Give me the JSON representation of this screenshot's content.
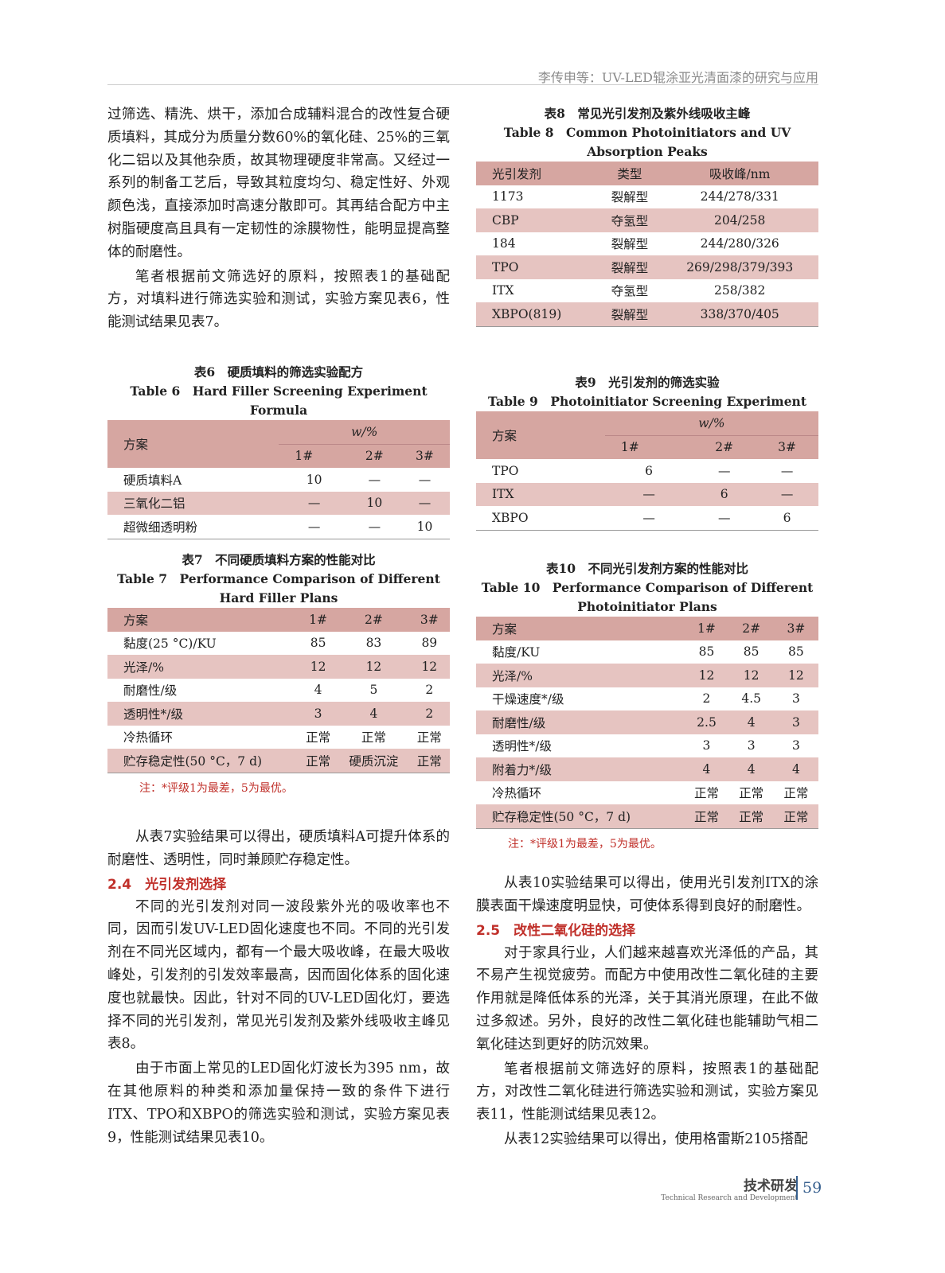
{
  "header": {
    "running_title": "李传申等：UV-LED辊涂亚光清面漆的研究与应用"
  },
  "left": {
    "p1": "过筛选、精洗、烘干，添加合成辅料混合的改性复合硬质填料，其成分为质量分数60%的氧化硅、25%的三氧化二铝以及其他杂质，故其物理硬度非常高。又经过一系列的制备工艺后，导致其粒度均匀、稳定性好、外观颜色浅，直接添加时高速分散即可。其再结合配方中主树脂硬度高且具有一定韧性的涂膜物性，能明显提高整体的耐磨性。",
    "p2": "笔者根据前文筛选好的原料，按照表1的基础配方，对填料进行筛选实验和测试，实验方案见表6，性能测试结果见表7。",
    "p3": "从表7实验结果可以得出，硬质填料A可提升体系的耐磨性、透明性，同时兼顾贮存稳定性。",
    "h24": "2.4　光引发剂选择",
    "p4": "不同的光引发剂对同一波段紫外光的吸收率也不同，因而引发UV-LED固化速度也不同。不同的光引发剂在不同光区域内，都有一个最大吸收峰，在最大吸收峰处，引发剂的引发效率最高，因而固化体系的固化速度也就最快。因此，针对不同的UV-LED固化灯，要选择不同的光引发剂，常见光引发剂及紫外线吸收主峰见表8。",
    "p5": "由于市面上常见的LED固化灯波长为395 nm，故在其他原料的种类和添加量保持一致的条件下进行ITX、TPO和XBPO的筛选实验和测试，实验方案见表9，性能测试结果见表10。"
  },
  "right": {
    "p1": "从表10实验结果可以得出，使用光引发剂ITX的涂膜表面干燥速度明显快，可使体系得到良好的耐磨性。",
    "h25": "2.5　改性二氧化硅的选择",
    "p2": "对于家具行业，人们越来越喜欢光泽低的产品，其不易产生视觉疲劳。而配方中使用改性二氧化硅的主要作用就是降低体系的光泽，关于其消光原理，在此不做过多叙述。另外，良好的改性二氧化硅也能辅助气相二氧化硅达到更好的防沉效果。",
    "p3": "笔者根据前文筛选好的原料，按照表1的基础配方，对改性二氧化硅进行筛选实验和测试，实验方案见表11，性能测试结果见表12。",
    "p4": "从表12实验结果可以得出，使用格雷斯2105搭配"
  },
  "tables": {
    "t6": {
      "cap_cn": "表6　硬质填料的筛选实验配方",
      "cap_en": "Table 6　Hard Filler Screening Experiment Formula",
      "group": "w/%",
      "header": [
        "方案",
        "1#",
        "2#",
        "3#"
      ],
      "rows": [
        [
          "硬质填料A",
          "10",
          "—",
          "—"
        ],
        [
          "三氧化二铝",
          "—",
          "10",
          "—"
        ],
        [
          "超微细透明粉",
          "—",
          "—",
          "10"
        ]
      ]
    },
    "t7": {
      "cap_cn": "表7　不同硬质填料方案的性能对比",
      "cap_en": "Table 7　Performance Comparison of Different Hard Filler Plans",
      "header": [
        "方案",
        "1#",
        "2#",
        "3#"
      ],
      "rows": [
        [
          "黏度(25 °C)/KU",
          "85",
          "83",
          "89"
        ],
        [
          "光泽/%",
          "12",
          "12",
          "12"
        ],
        [
          "耐磨性/级",
          "4",
          "5",
          "2"
        ],
        [
          "透明性*/级",
          "3",
          "4",
          "2"
        ],
        [
          "冷热循环",
          "正常",
          "正常",
          "正常"
        ],
        [
          "贮存稳定性(50 °C，7 d)",
          "正常",
          "硬质沉淀",
          "正常"
        ]
      ],
      "note": "注：*评级1为最差，5为最优。"
    },
    "t8": {
      "cap_cn": "表8　常见光引发剂及紫外线吸收主峰",
      "cap_en": "Table 8　Common Photoinitiators and UV Absorption Peaks",
      "header": [
        "光引发剂",
        "类型",
        "吸收峰/nm"
      ],
      "rows": [
        [
          "1173",
          "裂解型",
          "244/278/331"
        ],
        [
          "CBP",
          "夺氢型",
          "204/258"
        ],
        [
          "184",
          "裂解型",
          "244/280/326"
        ],
        [
          "TPO",
          "裂解型",
          "269/298/379/393"
        ],
        [
          "ITX",
          "夺氢型",
          "258/382"
        ],
        [
          "XBPO(819)",
          "裂解型",
          "338/370/405"
        ]
      ]
    },
    "t9": {
      "cap_cn": "表9　光引发剂的筛选实验",
      "cap_en": "Table 9　Photoinitiator Screening Experiment",
      "group": "w/%",
      "header": [
        "方案",
        "1#",
        "2#",
        "3#"
      ],
      "rows": [
        [
          "TPO",
          "6",
          "—",
          "—"
        ],
        [
          "ITX",
          "—",
          "6",
          "—"
        ],
        [
          "XBPO",
          "—",
          "—",
          "6"
        ]
      ]
    },
    "t10": {
      "cap_cn": "表10　不同光引发剂方案的性能对比",
      "cap_en": "Table 10　Performance Comparison of Different Photoinitiator Plans",
      "header": [
        "方案",
        "1#",
        "2#",
        "3#"
      ],
      "rows": [
        [
          "黏度/KU",
          "85",
          "85",
          "85"
        ],
        [
          "光泽/%",
          "12",
          "12",
          "12"
        ],
        [
          "干燥速度*/级",
          "2",
          "4.5",
          "3"
        ],
        [
          "耐磨性/级",
          "2.5",
          "4",
          "3"
        ],
        [
          "透明性*/级",
          "3",
          "3",
          "3"
        ],
        [
          "附着力*/级",
          "4",
          "4",
          "4"
        ],
        [
          "冷热循环",
          "正常",
          "正常",
          "正常"
        ],
        [
          "贮存稳定性(50 °C，7 d)",
          "正常",
          "正常",
          "正常"
        ]
      ],
      "note": "注：*评级1为最差，5为最优。"
    }
  },
  "footer": {
    "section_cn": "技术研发",
    "section_en": "Technical Research and Development",
    "page_number": "59"
  },
  "colors": {
    "table_header": "#d6a6a1",
    "table_stripe": "#e6c4c1",
    "heading": "#c0302a",
    "page_number": "#355e8d"
  }
}
